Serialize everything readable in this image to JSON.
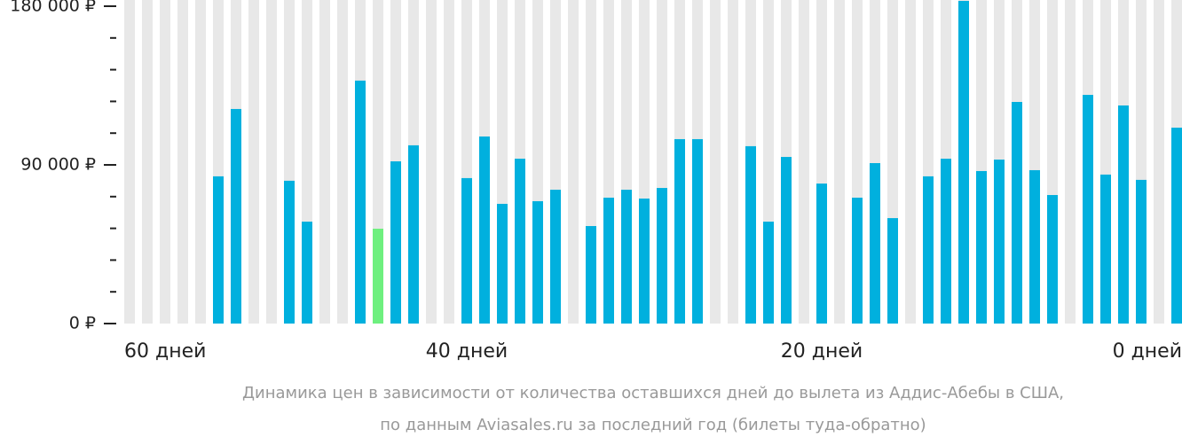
{
  "chart_data": {
    "type": "bar",
    "categories": [
      "60 дней",
      null,
      null,
      null,
      null,
      null,
      null,
      null,
      null,
      null,
      null,
      null,
      null,
      null,
      null,
      null,
      null,
      null,
      null,
      "40 дней",
      null,
      null,
      null,
      null,
      null,
      null,
      null,
      null,
      null,
      null,
      null,
      null,
      null,
      null,
      null,
      null,
      null,
      null,
      null,
      "20 дней",
      null,
      null,
      null,
      null,
      null,
      null,
      null,
      null,
      null,
      null,
      null,
      null,
      null,
      null,
      null,
      null,
      null,
      null,
      null,
      "0 дней"
    ],
    "values": [
      null,
      null,
      null,
      null,
      null,
      83500,
      121700,
      null,
      null,
      81000,
      57800,
      null,
      null,
      137800,
      53800,
      92000,
      101100,
      null,
      null,
      82500,
      106100,
      67900,
      93500,
      69400,
      75900,
      null,
      55300,
      71400,
      75900,
      70900,
      76900,
      104600,
      104600,
      null,
      null,
      100600,
      57800,
      94500,
      null,
      79400,
      null,
      71400,
      91000,
      59800,
      null,
      83500,
      93500,
      183000,
      86500,
      93000,
      125700,
      87000,
      72900,
      null,
      129700,
      84500,
      123700,
      81500,
      null,
      111100
    ],
    "color": "#00b0de",
    "min_color": "#6ef07f",
    "slot_color": "#e8e8e8",
    "ylim": [
      0,
      180000
    ],
    "yticks": [
      {
        "value": 0,
        "label": "0 ₽"
      },
      {
        "value": 90000,
        "label": "90 000 ₽"
      },
      {
        "value": 180000,
        "label": "180 000 ₽"
      }
    ],
    "minor_yticks": [
      18000,
      36000,
      54000,
      72000,
      108000,
      126000,
      144000,
      162000
    ],
    "caption": [
      "Динамика цен в зависимости от количества оставшихся дней до вылета из Аддис-Абебы в США,",
      "по данным Aviasales.ru за последний год (билеты туда-обратно)"
    ]
  }
}
